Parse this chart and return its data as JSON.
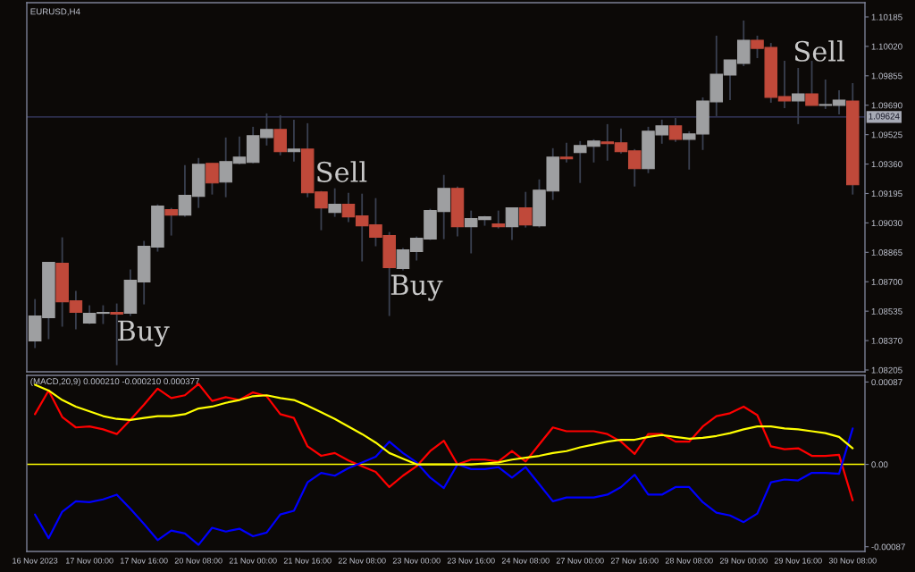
{
  "chart_data": [
    {
      "type": "candlestick",
      "title": "EURUSD,H4",
      "tick_labels": "y",
      "categories": [
        null,
        null,
        null,
        null,
        null,
        null,
        null,
        null,
        null,
        null,
        null,
        null,
        null,
        null,
        null,
        null,
        null,
        null,
        null,
        null,
        null,
        null,
        null,
        null,
        null,
        null,
        null,
        null,
        null,
        null,
        null,
        null,
        null,
        null,
        null,
        null,
        null,
        null,
        null,
        null,
        null,
        null,
        null,
        null,
        null,
        null,
        null,
        null,
        null,
        null,
        null,
        null,
        null,
        null,
        null,
        null,
        null,
        null,
        null,
        null,
        null
      ],
      "ohlc": [
        [
          1.08368,
          1.08603,
          1.08328,
          1.08508
        ],
        [
          1.08498,
          1.08809,
          1.08378,
          1.08809
        ],
        [
          1.08804,
          1.08949,
          1.08448,
          1.08588
        ],
        [
          1.08593,
          1.08648,
          1.08433,
          1.08528
        ],
        [
          1.08468,
          1.08568,
          1.08463,
          1.08523
        ],
        [
          1.08523,
          1.08568,
          1.08463,
          1.08528
        ],
        [
          1.08528,
          1.08578,
          1.08232,
          1.08518
        ],
        [
          1.08523,
          1.08769,
          1.08508,
          1.08709
        ],
        [
          1.08699,
          1.08929,
          1.08573,
          1.08899
        ],
        [
          1.08894,
          1.09134,
          1.08869,
          1.09124
        ],
        [
          1.09104,
          1.09114,
          1.08959,
          1.09074
        ],
        [
          1.09074,
          1.09354,
          1.09064,
          1.09184
        ],
        [
          1.09179,
          1.09394,
          1.09114,
          1.09359
        ],
        [
          1.09364,
          1.09364,
          1.09189,
          1.09254
        ],
        [
          1.09259,
          1.09509,
          1.09174,
          1.09374
        ],
        [
          1.09364,
          1.09514,
          1.09359,
          1.09399
        ],
        [
          1.09369,
          1.09569,
          1.09364,
          1.09519
        ],
        [
          1.09509,
          1.09644,
          1.09464,
          1.09554
        ],
        [
          1.09554,
          1.09634,
          1.09409,
          1.09429
        ],
        [
          1.09429,
          1.09609,
          1.09374,
          1.09444
        ],
        [
          1.09444,
          1.09589,
          1.09174,
          1.09199
        ],
        [
          1.09204,
          1.09209,
          1.08989,
          1.09114
        ],
        [
          1.09089,
          1.09224,
          1.09064,
          1.09134
        ],
        [
          1.09134,
          1.09199,
          1.09034,
          1.09064
        ],
        [
          1.09069,
          1.09194,
          1.08814,
          1.09014
        ],
        [
          1.09019,
          1.09169,
          1.08899,
          1.08949
        ],
        [
          1.08959,
          1.08979,
          1.08508,
          1.08779
        ],
        [
          1.08774,
          1.08889,
          1.08764,
          1.08879
        ],
        [
          1.08869,
          1.08954,
          1.08819,
          1.08944
        ],
        [
          1.08939,
          1.09109,
          1.08934,
          1.09099
        ],
        [
          1.09094,
          1.09299,
          1.08939,
          1.09224
        ],
        [
          1.09224,
          1.09234,
          1.08954,
          1.09009
        ],
        [
          1.09009,
          1.09099,
          1.08859,
          1.09054
        ],
        [
          1.09049,
          1.09069,
          1.09014,
          1.09064
        ],
        [
          1.09024,
          1.09099,
          1.08999,
          1.09009
        ],
        [
          1.09009,
          1.09114,
          1.08934,
          1.09114
        ],
        [
          1.09114,
          1.09204,
          1.09004,
          1.09019
        ],
        [
          1.09014,
          1.09274,
          1.09004,
          1.09214
        ],
        [
          1.09209,
          1.09449,
          1.09159,
          1.09399
        ],
        [
          1.09399,
          1.09479,
          1.09369,
          1.09389
        ],
        [
          1.09424,
          1.09489,
          1.09254,
          1.09464
        ],
        [
          1.09459,
          1.09499,
          1.09369,
          1.09489
        ],
        [
          1.09484,
          1.09584,
          1.09379,
          1.09474
        ],
        [
          1.09479,
          1.09559,
          1.09419,
          1.09429
        ],
        [
          1.09434,
          1.09444,
          1.09234,
          1.09334
        ],
        [
          1.09334,
          1.09569,
          1.09309,
          1.09544
        ],
        [
          1.09524,
          1.09609,
          1.09474,
          1.09574
        ],
        [
          1.09574,
          1.09619,
          1.09484,
          1.09499
        ],
        [
          1.09499,
          1.09544,
          1.09329,
          1.09529
        ],
        [
          1.09529,
          1.09734,
          1.09439,
          1.09714
        ],
        [
          1.09709,
          1.1008,
          1.09629,
          1.09864
        ],
        [
          1.09859,
          1.09944,
          1.09719,
          1.09944
        ],
        [
          1.09924,
          1.10165,
          1.09909,
          1.10054
        ],
        [
          1.10054,
          1.1008,
          1.09954,
          1.10009
        ],
        [
          1.10014,
          1.10039,
          1.09704,
          1.09734
        ],
        [
          1.09739,
          1.09939,
          1.09674,
          1.09714
        ],
        [
          1.09714,
          1.09899,
          1.09584,
          1.09754
        ],
        [
          1.09754,
          1.09939,
          1.09689,
          1.09689
        ],
        [
          1.09689,
          1.09834,
          1.09669,
          1.09694
        ],
        [
          1.09689,
          1.09774,
          1.09639,
          1.09719
        ],
        [
          1.09714,
          1.09814,
          1.09189,
          1.09244
        ]
      ],
      "colors": [
        "#9e9fa1",
        "#9e9fa1",
        "#c0493a",
        "#c0493a",
        "#9e9fa1",
        "#9e9fa1",
        "#c0493a",
        "#9e9fa1",
        "#9e9fa1",
        "#9e9fa1",
        "#c0493a",
        "#9e9fa1",
        "#9e9fa1",
        "#c0493a",
        "#9e9fa1",
        "#9e9fa1",
        "#9e9fa1",
        "#9e9fa1",
        "#c0493a",
        "#9e9fa1",
        "#c0493a",
        "#c0493a",
        "#9e9fa1",
        "#c0493a",
        "#c0493a",
        "#c0493a",
        "#c0493a",
        "#9e9fa1",
        "#9e9fa1",
        "#9e9fa1",
        "#9e9fa1",
        "#c0493a",
        "#9e9fa1",
        "#9e9fa1",
        "#c0493a",
        "#9e9fa1",
        "#c0493a",
        "#9e9fa1",
        "#9e9fa1",
        "#c0493a",
        "#9e9fa1",
        "#9e9fa1",
        "#c0493a",
        "#c0493a",
        "#c0493a",
        "#9e9fa1",
        "#9e9fa1",
        "#c0493a",
        "#9e9fa1",
        "#9e9fa1",
        "#9e9fa1",
        "#9e9fa1",
        "#9e9fa1",
        "#c0493a",
        "#c0493a",
        "#c0493a",
        "#9e9fa1",
        "#c0493a",
        "#9e9fa1",
        "#9e9fa1",
        "#c0493a"
      ],
      "ylim": [
        1.08195,
        1.10265
      ],
      "yticks": [
        1.10185,
        {
          "value": 1.1002,
          "label": "1.10020"
        },
        1.09855,
        {
          "value": 1.0969,
          "label": "1.09690"
        },
        1.09525,
        {
          "value": 1.0936,
          "label": "1.09360"
        },
        1.09195,
        {
          "value": 1.0903,
          "label": "1.09030"
        },
        1.08865,
        {
          "value": 1.087,
          "label": "1.08700"
        },
        1.08535,
        {
          "value": 1.0837,
          "label": "1.08370"
        },
        1.08205
      ],
      "ref_lines": [
        {
          "axis": "y",
          "value": 1.09624,
          "label": "1.09624",
          "color": "#3b3f6b"
        }
      ],
      "annotations": [
        "Buy",
        "Sell",
        "Buy",
        "Sell"
      ]
    },
    {
      "type": "line",
      "title": "(MACD,20,9) 0.000210 -0.000210 0.000377",
      "categories": [
        "16 Nov 2023",
        null,
        null,
        null,
        "17 Nov 00:00",
        null,
        null,
        null,
        "17 Nov 16:00",
        null,
        null,
        null,
        "20 Nov 08:00",
        null,
        null,
        null,
        "21 Nov 00:00",
        null,
        null,
        null,
        "21 Nov 16:00",
        null,
        null,
        null,
        "22 Nov 08:00",
        null,
        null,
        null,
        "23 Nov 00:00",
        null,
        null,
        null,
        "23 Nov 16:00",
        null,
        null,
        null,
        "24 Nov 08:00",
        null,
        null,
        null,
        "27 Nov 00:00",
        null,
        null,
        null,
        "27 Nov 16:00",
        null,
        null,
        null,
        "28 Nov 08:00",
        null,
        null,
        null,
        "29 Nov 00:00",
        null,
        null,
        null,
        "29 Nov 16:00",
        null,
        null,
        null,
        "30 Nov 08:00"
      ],
      "series": [
        {
          "color": "#ff0000",
          "values": [
            0.00053,
            0.00078,
            0.0005,
            0.00039,
            0.0004,
            0.00037,
            0.00032,
            0.00047,
            0.00063,
            0.0008,
            0.0007,
            0.00073,
            0.00085,
            0.00067,
            0.00071,
            0.00068,
            0.00076,
            0.00072,
            0.00053,
            0.00049,
            0.00019,
            9e-05,
            0.00012,
            4e-05,
            -2e-05,
            -8e-05,
            -0.00024,
            -0.00012,
            -2e-05,
            0.00014,
            0.00025,
            0.0,
            5e-05,
            5e-05,
            3e-05,
            0.00014,
            3e-05,
            0.00021,
            0.00039,
            0.00035,
            0.00035,
            0.00035,
            0.00032,
            0.00024,
            0.00011,
            0.00032,
            0.00032,
            0.00024,
            0.00024,
            0.0004,
            0.00051,
            0.00054,
            0.00061,
            0.00052,
            0.00019,
            0.00016,
            0.00017,
            9e-05,
            9e-05,
            0.0001,
            -0.00038
          ]
        },
        {
          "color": "#0000ff",
          "values": [
            -0.00053,
            -0.00078,
            -0.0005,
            -0.00039,
            -0.0004,
            -0.00037,
            -0.00032,
            -0.00047,
            -0.00063,
            -0.0008,
            -0.0007,
            -0.00073,
            -0.00085,
            -0.00067,
            -0.00071,
            -0.00068,
            -0.00076,
            -0.00072,
            -0.00053,
            -0.00049,
            -0.00019,
            -9e-05,
            -0.00012,
            -4e-05,
            2e-05,
            8e-05,
            0.00024,
            0.00012,
            2e-05,
            -0.00014,
            -0.00025,
            0.0,
            -5e-05,
            -5e-05,
            -3e-05,
            -0.00014,
            -3e-05,
            -0.00021,
            -0.00039,
            -0.00035,
            -0.00035,
            -0.00035,
            -0.00032,
            -0.00024,
            -0.00011,
            -0.00032,
            -0.00032,
            -0.00024,
            -0.00024,
            -0.0004,
            -0.00051,
            -0.00054,
            -0.00061,
            -0.00052,
            -0.00019,
            -0.00016,
            -0.00017,
            -9e-05,
            -9e-05,
            -0.0001,
            0.00038
          ]
        },
        {
          "color": "#ffff00",
          "values": [
            0.00084,
            0.00078,
            0.00068,
            0.00061,
            0.00056,
            0.00051,
            0.00048,
            0.00047,
            0.00049,
            0.00051,
            0.00051,
            0.00053,
            0.00059,
            0.00061,
            0.00065,
            0.00068,
            0.00072,
            0.00073,
            0.0007,
            0.00068,
            0.00062,
            0.00055,
            0.00048,
            0.0004,
            0.00032,
            0.00023,
            0.00012,
            6e-05,
            0.0,
            0.0,
            0.0,
            0.0,
            0.0,
            1e-05,
            2e-05,
            5e-05,
            7e-05,
            9e-05,
            0.00012,
            0.00014,
            0.00018,
            0.00021,
            0.00024,
            0.00026,
            0.00026,
            0.00029,
            0.00031,
            0.00029,
            0.00027,
            0.00028,
            0.0003,
            0.00033,
            0.00037,
            0.0004,
            0.0004,
            0.00038,
            0.00037,
            0.00035,
            0.00033,
            0.00029,
            0.00017
          ]
        }
      ],
      "ylim": [
        -0.00092,
        0.00094
      ],
      "yticks": [
        0.00087,
        {
          "value": 0,
          "label": "0.00"
        },
        -0.00087
      ],
      "ref_lines": [
        {
          "axis": "y",
          "value": 0,
          "color": "#ffff00"
        }
      ]
    }
  ]
}
